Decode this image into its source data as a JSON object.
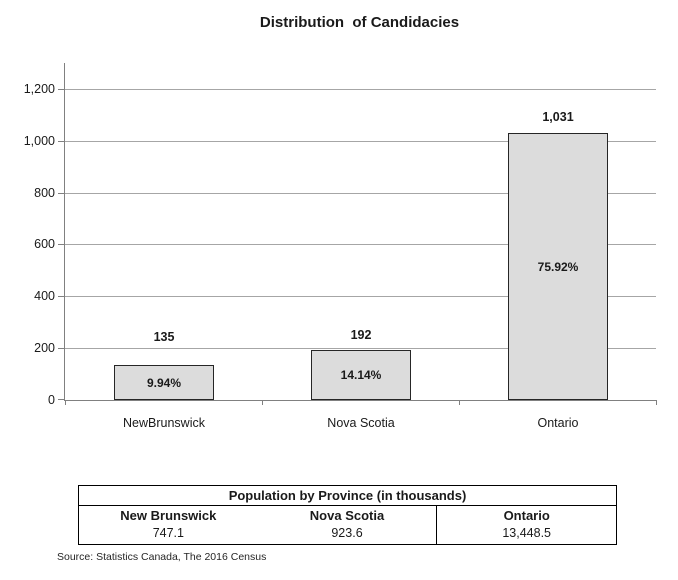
{
  "chart_data": {
    "type": "bar",
    "title": "Distribution  of Candidacies",
    "categories": [
      "NewBrunswick",
      "Nova Scotia",
      "Ontario"
    ],
    "values": [
      135,
      192,
      1031
    ],
    "value_labels": [
      "135",
      "192",
      "1,031"
    ],
    "percent_labels": [
      "9.94%",
      "14.14%",
      "75.92%"
    ],
    "xlabel": "",
    "ylabel": "",
    "ylim": [
      0,
      1300
    ],
    "yticks": [
      0,
      200,
      400,
      600,
      800,
      1000,
      1200
    ],
    "ytick_labels": [
      "0",
      "200",
      "400",
      "600",
      "800",
      "1,000",
      "1,200"
    ],
    "grid": true,
    "legend": "none",
    "bar_fill_color": "#dcdcdc",
    "bar_border_color": "#262626",
    "gridline_color": "#a6a6a6",
    "axis_color": "#808080"
  },
  "table": {
    "title": "Population by Province (in thousands)",
    "columns": [
      {
        "name": "New Brunswick",
        "value": "747.1"
      },
      {
        "name": "Nova Scotia",
        "value": "923.6"
      },
      {
        "name": "Ontario",
        "value": "13,448.5"
      }
    ]
  },
  "source": "Source: Statistics Canada, The 2016 Census"
}
